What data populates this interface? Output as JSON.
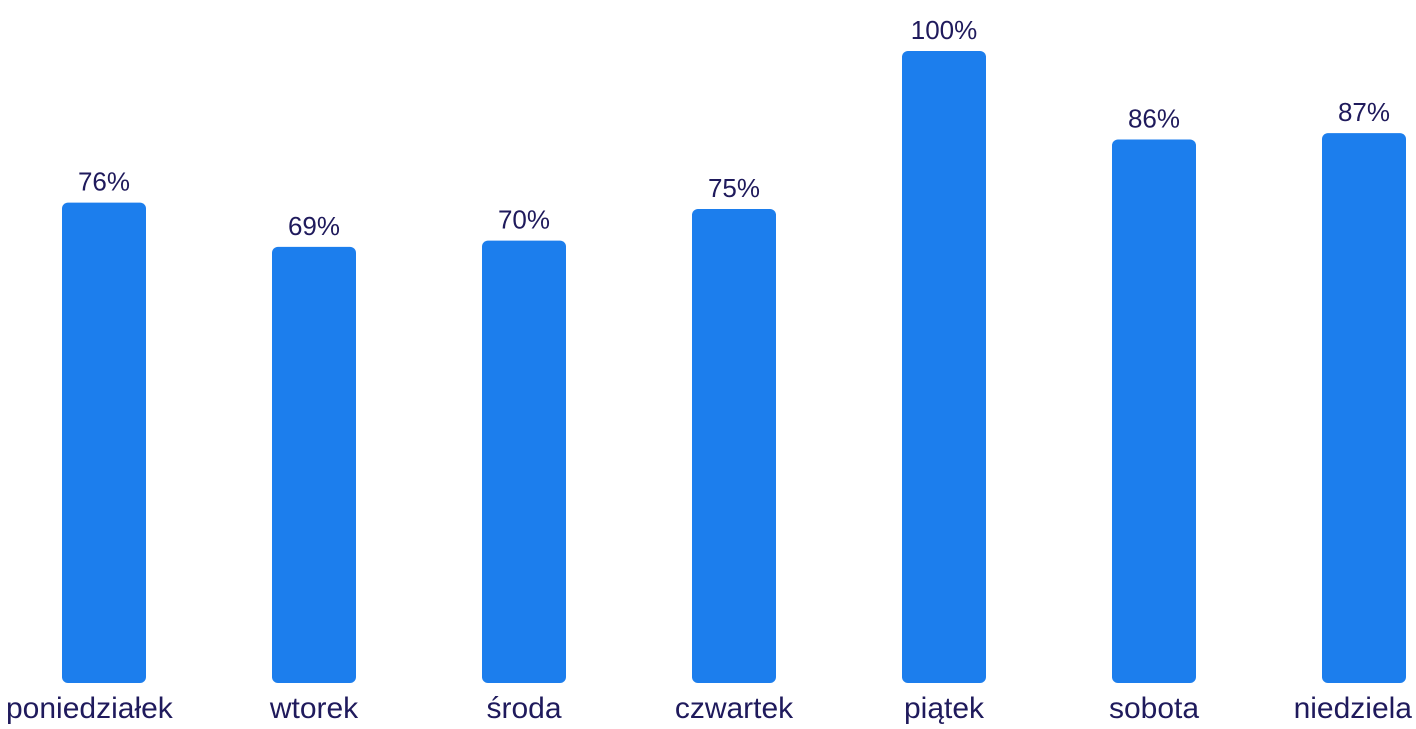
{
  "chart_data": {
    "type": "bar",
    "categories": [
      "poniedziałek",
      "wtorek",
      "środa",
      "czwartek",
      "piątek",
      "sobota",
      "niedziela"
    ],
    "values": [
      76,
      69,
      70,
      75,
      100,
      86,
      87
    ],
    "value_labels": [
      "76%",
      "69%",
      "70%",
      "75%",
      "100%",
      "86%",
      "87%"
    ],
    "ylim": [
      0,
      100
    ],
    "grid": false,
    "legend": "none"
  },
  "colors": {
    "bar": "#1c7eed",
    "value_text": "#1f1a5c",
    "category_text": "#1f1a5c"
  }
}
